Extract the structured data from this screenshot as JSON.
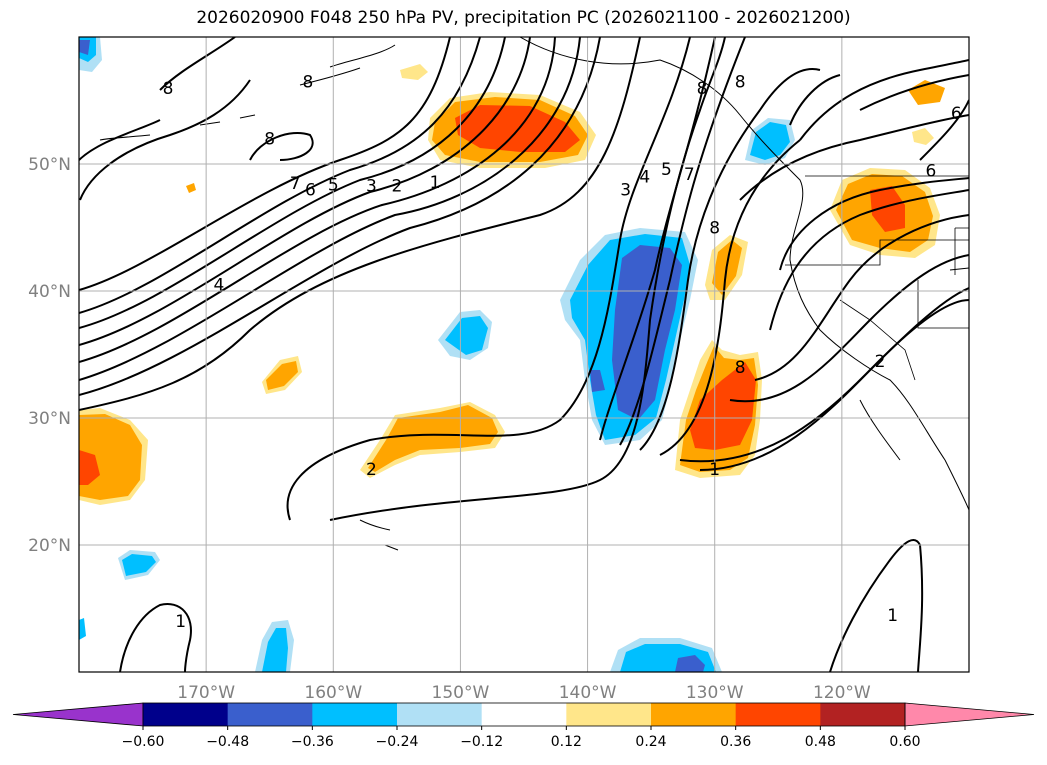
{
  "title": "2026020900 F048 250 hPa PV, precipitation PC (2026021100 - 2026021200)",
  "chart_data": {
    "type": "map",
    "title": "2026020900 F048 250 hPa PV, precipitation PC (2026021100 - 2026021200)",
    "lon_ticks": [
      {
        "lon": -170,
        "label": "170°W"
      },
      {
        "lon": -160,
        "label": "160°W"
      },
      {
        "lon": -150,
        "label": "150°W"
      },
      {
        "lon": -140,
        "label": "140°W"
      },
      {
        "lon": -130,
        "label": "130°W"
      },
      {
        "lon": -120,
        "label": "120°W"
      }
    ],
    "lat_ticks": [
      {
        "lat": 50,
        "label": "50°N"
      },
      {
        "lat": 40,
        "label": "40°N"
      },
      {
        "lat": 30,
        "label": "30°N"
      },
      {
        "lat": 20,
        "label": "20°N"
      }
    ],
    "lon_range": [
      -180,
      -110
    ],
    "lat_range": [
      10,
      60
    ],
    "grid": true,
    "colorbar": {
      "position": "bottom",
      "levels": [
        -0.6,
        -0.48,
        -0.36,
        -0.24,
        -0.12,
        0.12,
        0.24,
        0.36,
        0.48,
        0.6
      ],
      "tick_labels": [
        "−0.60",
        "−0.48",
        "−0.36",
        "−0.24",
        "−0.12",
        "0.12",
        "0.24",
        "0.36",
        "0.48",
        "0.60"
      ],
      "colors": [
        "#9933cc",
        "#00008b",
        "#3a5fcd",
        "#00bfff",
        "#b0e0f5",
        "#ffffff",
        "#ffe68a",
        "#ffa500",
        "#ff4500",
        "#b22222",
        "#ff88aa"
      ],
      "extend": "both"
    },
    "contour_labels": [
      {
        "lon": -173,
        "lat": 56.0,
        "text": "8"
      },
      {
        "lon": -162,
        "lat": 56.5,
        "text": "8"
      },
      {
        "lon": -165,
        "lat": 52.0,
        "text": "8"
      },
      {
        "lon": -163,
        "lat": 48.5,
        "text": "7"
      },
      {
        "lon": -161.8,
        "lat": 48.0,
        "text": "6"
      },
      {
        "lon": -160,
        "lat": 48.4,
        "text": "5"
      },
      {
        "lon": -157,
        "lat": 48.3,
        "text": "3"
      },
      {
        "lon": -155,
        "lat": 48.3,
        "text": "2"
      },
      {
        "lon": -152,
        "lat": 48.6,
        "text": "1"
      },
      {
        "lon": -169,
        "lat": 40.5,
        "text": "4"
      },
      {
        "lon": -157,
        "lat": 26.0,
        "text": "2"
      },
      {
        "lon": -137,
        "lat": 48.0,
        "text": "3"
      },
      {
        "lon": -135.5,
        "lat": 49.0,
        "text": "4"
      },
      {
        "lon": -133.8,
        "lat": 49.6,
        "text": "5"
      },
      {
        "lon": -132,
        "lat": 49.2,
        "text": "7"
      },
      {
        "lon": -130,
        "lat": 45.0,
        "text": "8"
      },
      {
        "lon": -131,
        "lat": 56.0,
        "text": "8"
      },
      {
        "lon": -128,
        "lat": 56.5,
        "text": "8"
      },
      {
        "lon": -113,
        "lat": 49.5,
        "text": "6"
      },
      {
        "lon": -111,
        "lat": 54.0,
        "text": "6"
      },
      {
        "lon": -128,
        "lat": 34.0,
        "text": "8"
      },
      {
        "lon": -117,
        "lat": 34.5,
        "text": "2"
      },
      {
        "lon": -130,
        "lat": 26.0,
        "text": "1"
      },
      {
        "lon": -172,
        "lat": 14.0,
        "text": "1"
      },
      {
        "lon": -116,
        "lat": 14.5,
        "text": "1"
      }
    ]
  }
}
